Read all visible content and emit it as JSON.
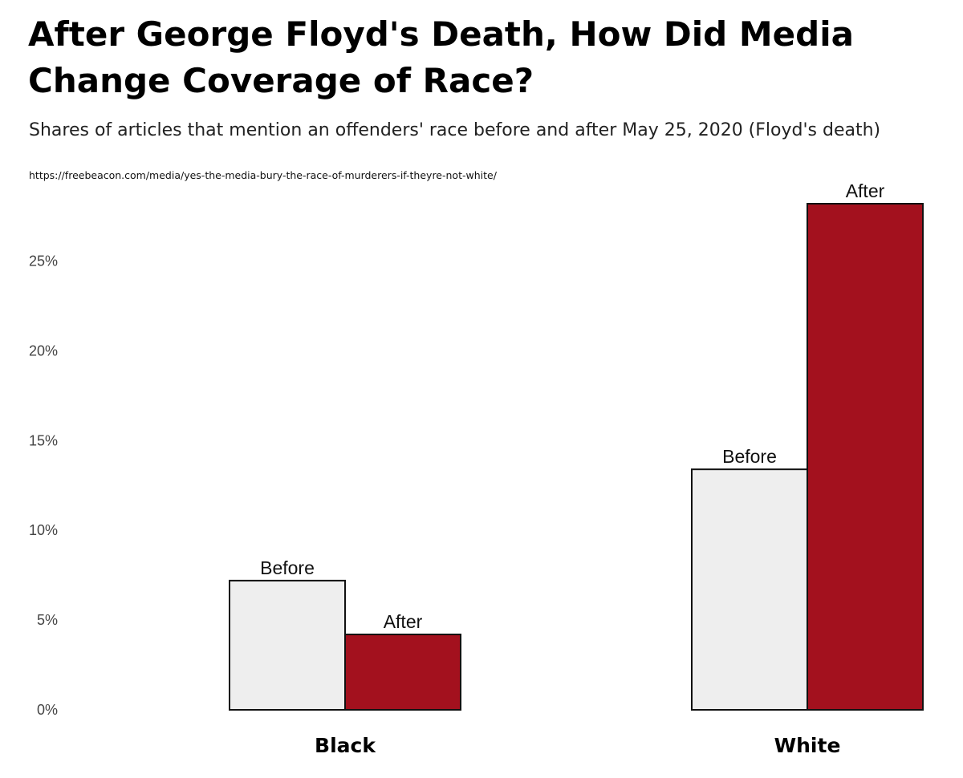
{
  "header": {
    "title": "After George Floyd's Death, How Did Media Change Coverage of Race?",
    "subtitle": "Shares of articles that mention an offenders' race before and after May 25, 2020 (Floyd's death)",
    "source": "https://freebeacon.com/media/yes-the-media-bury-the-race-of-murderers-if-theyre-not-white/"
  },
  "chart_data": {
    "type": "bar",
    "categories": [
      "Black",
      "White"
    ],
    "series": [
      {
        "name": "Before",
        "values": [
          7.2,
          13.4
        ],
        "color": "#eeeeee"
      },
      {
        "name": "After",
        "values": [
          4.2,
          28.2
        ],
        "color": "#a3111e"
      }
    ],
    "bar_labels": [
      "Before",
      "After"
    ],
    "yticks": [
      "0%",
      "5%",
      "10%",
      "15%",
      "20%",
      "25%"
    ],
    "ytick_values": [
      0,
      5,
      10,
      15,
      20,
      25
    ],
    "ylim": [
      0,
      28.2
    ],
    "xlabel": "",
    "ylabel": "",
    "grid": false,
    "legend": "none"
  }
}
